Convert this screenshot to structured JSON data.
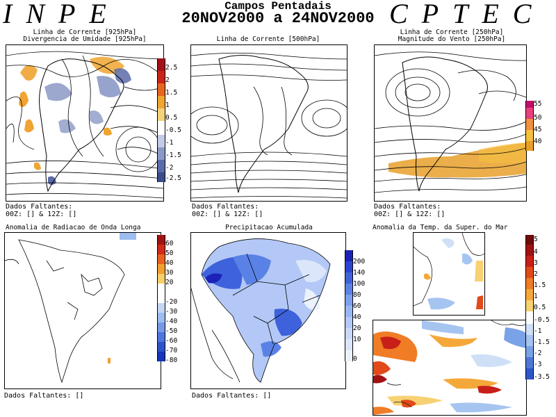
{
  "header": {
    "brand_left": "INPE",
    "brand_right": "CPTEC",
    "title": "Campos Pentadais",
    "period": "20NOV2000 a 24NOV2000"
  },
  "panels": {
    "p1": {
      "title_1": "Linha de Corrente [925hPa]",
      "title_2": "Divergencia de Umidade [925hPa]",
      "missing": "Dados Faltantes:",
      "missing_2": "00Z: [] & 12Z: []"
    },
    "p2": {
      "title_1": "Linha de Corrente [500hPa]",
      "missing": "Dados Faltantes:",
      "missing_2": "00Z: [] & 12Z: []"
    },
    "p3": {
      "title_1": "Linha de Corrente [250hPa]",
      "title_2": "Magnitude do Vento [250hPa]",
      "missing": "Dados Faltantes:",
      "missing_2": "00Z: [] & 12Z: []"
    },
    "p4": {
      "title_1": "Anomalia de Radiacao de Onda Longa",
      "missing": "Dados Faltantes: []"
    },
    "p5": {
      "title_1": "Precipitacao Acumulada",
      "missing": "Dados Faltantes: []"
    },
    "p6": {
      "title_1": "Anomalia da Temp. da Super. do Mar"
    }
  },
  "colorbars": {
    "div": {
      "colors": [
        "#3b4c8c",
        "#5a6ba8",
        "#8b99c6",
        "#c3cbe6",
        "#ffffff",
        "#ffffff",
        "#f4d27a",
        "#f0a431",
        "#e5661f",
        "#c8241b",
        "#a0121a"
      ],
      "labels": [
        "2.5",
        "2",
        "1.5",
        "1",
        "0.5",
        "-0.5",
        "-1",
        "-1.5",
        "-2",
        "-2.5"
      ]
    },
    "wind": {
      "colors": [
        "#e8a02a",
        "#f5c040",
        "#f09040",
        "#e84080",
        "#c0106a"
      ],
      "labels": [
        "55",
        "50",
        "45",
        "40"
      ]
    },
    "olr": {
      "colors": [
        "#a01414",
        "#d02a1a",
        "#e8621f",
        "#f0a030",
        "#f6cf6a",
        "#ffffff",
        "#ffffff",
        "#c4d6f4",
        "#9dbcf0",
        "#7699e6",
        "#4f76dc",
        "#2e54cc",
        "#1834b8"
      ],
      "labels": [
        "60",
        "50",
        "40",
        "30",
        "20",
        "-20",
        "-30",
        "-40",
        "-50",
        "-60",
        "-70",
        "-80"
      ]
    },
    "precip": {
      "colors": [
        "#1a22b8",
        "#2b44d0",
        "#3e62dc",
        "#5a82e6",
        "#7aa0ee",
        "#98b6f2",
        "#b3c8f6",
        "#c8d8f8",
        "#dbe6fa",
        "#ecf2fc"
      ],
      "labels": [
        "200",
        "140",
        "100",
        "80",
        "60",
        "40",
        "20",
        "10",
        "0"
      ]
    },
    "sst": {
      "colors": [
        "#6e0a0a",
        "#a01212",
        "#c82018",
        "#e24a1a",
        "#f07c25",
        "#f5a83a",
        "#f7d172",
        "#ffffff",
        "#ffffff",
        "#cfe0f6",
        "#a6c4f0",
        "#7aa2e6",
        "#4f78d6",
        "#2f56c8"
      ],
      "labels": [
        "5",
        "4",
        "3",
        "2",
        "1.5",
        "1",
        "0.5",
        "-0.5",
        "-1",
        "-1.5",
        "-2",
        "-3",
        "-3.5"
      ]
    }
  }
}
